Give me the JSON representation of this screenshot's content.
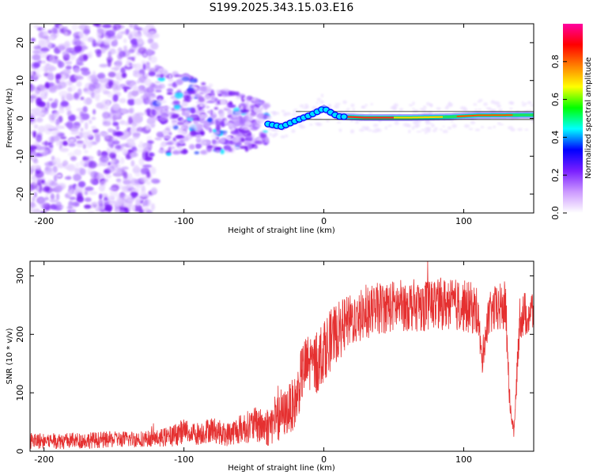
{
  "title": "S199.2025.343.15.03.E16",
  "colors": {
    "snr_line": "#e53030",
    "grid_line": "#000000",
    "track_color": "#1a1a1a"
  },
  "chart_data": [
    {
      "type": "heatmap",
      "name": "spectrogram",
      "xlabel": "Height of straight line (km)",
      "ylabel": "Frequency (Hz)",
      "xlim": [
        -210,
        150
      ],
      "ylim": [
        -25,
        25
      ],
      "x_ticks": [
        -200,
        -100,
        0,
        100
      ],
      "x_tick_labels": [
        "-200",
        "-100",
        "0",
        "100"
      ],
      "y_ticks": [
        -20,
        -10,
        0,
        10,
        20
      ],
      "y_tick_labels": [
        "-20",
        "-10",
        "0",
        "10",
        "20"
      ],
      "colorbar": {
        "label": "Normalized spectral amplitude",
        "range": [
          0,
          1
        ],
        "ticks": [
          0,
          0.2,
          0.4,
          0.6,
          0.8
        ],
        "tick_labels": [
          "0.0",
          "0.2",
          "0.4",
          "0.6",
          "0.8"
        ],
        "colors": [
          "#ffffff",
          "#cc99ff",
          "#7a1fff",
          "#0000ff",
          "#00ffff",
          "#00ff00",
          "#ffff00",
          "#ff8000",
          "#ff0000",
          "#ff00a0"
        ]
      },
      "description_of_signal": {
        "noise_region_x": [
          -210,
          -120
        ],
        "transition_region_x": [
          -120,
          -40
        ],
        "signal_track": [
          {
            "x": -40,
            "y": -1.5
          },
          {
            "x": -30,
            "y": -2.2
          },
          {
            "x": -20,
            "y": -0.6
          },
          {
            "x": -10,
            "y": 0.8
          },
          {
            "x": 0,
            "y": 2.6
          },
          {
            "x": 10,
            "y": 0.5
          },
          {
            "x": 30,
            "y": 0.2
          },
          {
            "x": 60,
            "y": 0.2
          },
          {
            "x": 90,
            "y": 0.4
          },
          {
            "x": 110,
            "y": 0.8
          },
          {
            "x": 150,
            "y": 0.9
          }
        ],
        "peak_amplitude": 1.0
      }
    },
    {
      "type": "line",
      "name": "snr",
      "xlabel": "Height of straight line (km)",
      "ylabel": "SNR (10 * v/v)",
      "xlim": [
        -210,
        150
      ],
      "ylim": [
        0,
        325
      ],
      "x_ticks": [
        -200,
        -100,
        0,
        100
      ],
      "x_tick_labels": [
        "-200",
        "-100",
        "0",
        "100"
      ],
      "y_ticks": [
        0,
        100,
        200,
        300
      ],
      "y_tick_labels": [
        "0",
        "100",
        "200",
        "300"
      ],
      "series": [
        {
          "name": "SNR",
          "x": [
            -210,
            -180,
            -150,
            -120,
            -110,
            -100,
            -90,
            -80,
            -70,
            -60,
            -50,
            -40,
            -30,
            -20,
            -15,
            -10,
            -5,
            0,
            10,
            20,
            30,
            40,
            50,
            60,
            70,
            80,
            90,
            100,
            105,
            110,
            113,
            116,
            120,
            130,
            133,
            136,
            140,
            150
          ],
          "y": [
            18,
            18,
            20,
            22,
            25,
            35,
            30,
            38,
            28,
            38,
            45,
            42,
            60,
            85,
            140,
            150,
            150,
            175,
            205,
            225,
            235,
            245,
            248,
            250,
            250,
            252,
            252,
            248,
            245,
            240,
            150,
            215,
            240,
            248,
            80,
            30,
            230,
            240
          ],
          "noise_amplitude": [
            14,
            14,
            14,
            14,
            18,
            22,
            20,
            22,
            20,
            25,
            30,
            35,
            40,
            45,
            50,
            55,
            55,
            55,
            50,
            45,
            45,
            45,
            45,
            45,
            45,
            45,
            45,
            45,
            45,
            40,
            25,
            35,
            40,
            45,
            20,
            10,
            40,
            40
          ]
        }
      ]
    }
  ]
}
